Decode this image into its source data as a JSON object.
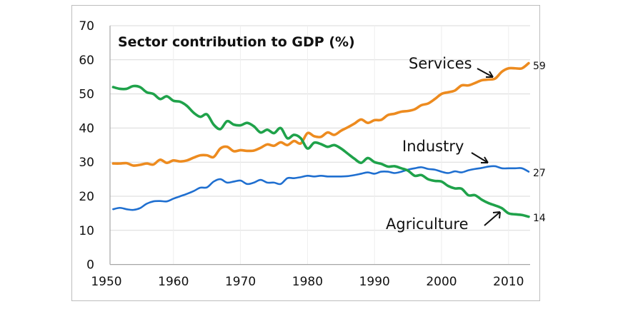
{
  "chart_data": {
    "type": "line",
    "title": "Sector contribution to GDP (%)",
    "xlabel": "",
    "ylabel": "",
    "xlim": [
      1950,
      2014
    ],
    "ylim": [
      0,
      70
    ],
    "x_ticks": [
      1950,
      1960,
      1970,
      1980,
      1990,
      2000,
      2010
    ],
    "y_ticks": [
      0,
      10,
      20,
      30,
      40,
      50,
      60,
      70
    ],
    "grid": true,
    "legend": "none (inline labels)",
    "x": [
      1951,
      1952,
      1953,
      1954,
      1955,
      1956,
      1957,
      1958,
      1959,
      1960,
      1961,
      1962,
      1963,
      1964,
      1965,
      1966,
      1967,
      1968,
      1969,
      1970,
      1971,
      1972,
      1973,
      1974,
      1975,
      1976,
      1977,
      1978,
      1979,
      1980,
      1981,
      1982,
      1983,
      1984,
      1985,
      1986,
      1987,
      1988,
      1989,
      1990,
      1991,
      1992,
      1993,
      1994,
      1995,
      1996,
      1997,
      1998,
      1999,
      2000,
      2001,
      2002,
      2003,
      2004,
      2005,
      2006,
      2007,
      2008,
      2009,
      2010,
      2011,
      2012,
      2013
    ],
    "series": [
      {
        "name": "Services",
        "color": "#ED8B1F",
        "end_label": "59",
        "values": [
          29.6,
          29.6,
          29.7,
          29,
          29.2,
          29.6,
          29.3,
          30.7,
          29.8,
          30.5,
          30.2,
          30.5,
          31.3,
          32,
          32,
          31.5,
          34,
          34.5,
          33.2,
          33.5,
          33.3,
          33.4,
          34.2,
          35.2,
          34.8,
          35.8,
          35,
          36.2,
          35.5,
          38.5,
          37.6,
          37.4,
          38.7,
          38,
          39.2,
          40.2,
          41.3,
          42.5,
          41.5,
          42.3,
          42.4,
          43.8,
          44.2,
          44.8,
          45,
          45.5,
          46.7,
          47.2,
          48.5,
          50,
          50.5,
          51,
          52.5,
          52.5,
          53.2,
          54,
          54.2,
          54.5,
          56.5,
          57.5,
          57.5,
          57.5,
          59
        ]
      },
      {
        "name": "Industry",
        "color": "#1F6FD0",
        "end_label": "27",
        "values": [
          16.2,
          16.6,
          16.2,
          16,
          16.5,
          17.8,
          18.5,
          18.6,
          18.5,
          19.3,
          20,
          20.7,
          21.5,
          22.5,
          22.6,
          24.3,
          25,
          24,
          24.3,
          24.6,
          23.6,
          24,
          24.8,
          24,
          24,
          23.6,
          25.3,
          25.3,
          25.6,
          26,
          25.8,
          26,
          25.8,
          25.8,
          25.8,
          25.9,
          26.2,
          26.6,
          27,
          26.6,
          27.2,
          27.2,
          26.8,
          27.2,
          27.8,
          28.2,
          28.5,
          28,
          27.8,
          27.2,
          26.8,
          27.3,
          27,
          27.6,
          28,
          28.3,
          28.7,
          28.8,
          28.2,
          28.2,
          28.2,
          28.2,
          27.2
        ]
      },
      {
        "name": "Agriculture",
        "color": "#1FA24A",
        "end_label": "14",
        "values": [
          52,
          51.5,
          51.5,
          52.3,
          52,
          50.5,
          50,
          48.5,
          49.3,
          48,
          47.7,
          46.5,
          44.5,
          43.3,
          44,
          41,
          39.7,
          42,
          41,
          40.8,
          41.5,
          40.5,
          38.7,
          39.5,
          38.5,
          40,
          37,
          38,
          37,
          34,
          35.7,
          35.3,
          34.5,
          35,
          34,
          32.5,
          31,
          29.8,
          31.2,
          30,
          29.5,
          28.7,
          28.8,
          28.2,
          27.5,
          26,
          26.2,
          25,
          24.5,
          24.3,
          23,
          22.3,
          22.2,
          20.3,
          20.3,
          19,
          18,
          17.3,
          16.5,
          15,
          14.7,
          14.5,
          14
        ]
      }
    ]
  }
}
